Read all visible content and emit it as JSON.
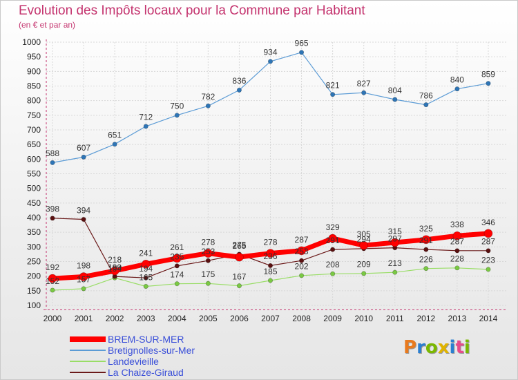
{
  "header": {
    "title": "Evolution des Impôts locaux pour la Commune par Habitant",
    "subtitle": "(en € et par an)"
  },
  "logo": {
    "text": "Proxiti",
    "colors": [
      "#e87a1e",
      "#2a7fd1",
      "#7ab800",
      "#e0b300",
      "#2a7fd1",
      "#e84b8a",
      "#7ab800"
    ]
  },
  "chart_data": {
    "type": "line",
    "title": "Evolution des Impôts locaux pour la Commune par Habitant",
    "subtitle": "(en € et par an)",
    "xlabel": "",
    "ylabel": "",
    "x": [
      "2000",
      "2001",
      "2002",
      "2003",
      "2004",
      "2005",
      "2006",
      "2007",
      "2008",
      "2009",
      "2010",
      "2011",
      "2012",
      "2013",
      "2014"
    ],
    "ylim": [
      100,
      1000
    ],
    "yticks": [
      100,
      150,
      200,
      250,
      300,
      350,
      400,
      450,
      500,
      550,
      600,
      650,
      700,
      750,
      800,
      850,
      900,
      950,
      1000
    ],
    "grid": true,
    "legend_position": "bottom-left",
    "series": [
      {
        "name": "Bretignolles-sur-Mer",
        "color": "#5b9bd5",
        "marker": "#2e75b6",
        "width": 1.2,
        "radius": 3.2,
        "values": [
          588,
          607,
          651,
          712,
          750,
          782,
          836,
          934,
          965,
          821,
          827,
          804,
          786,
          840,
          859
        ]
      },
      {
        "name": "Landevieille",
        "color": "#99dd66",
        "marker": "#7ac943",
        "width": 1.2,
        "radius": 3.2,
        "values": [
          152,
          157,
          194,
          165,
          174,
          175,
          167,
          185,
          202,
          208,
          209,
          213,
          226,
          228,
          223
        ]
      },
      {
        "name": "La Chaize-Giraud",
        "color": "#6b1a1a",
        "marker": "#5a1010",
        "width": 1.2,
        "radius": 3.2,
        "values": [
          398,
          394,
          199,
          194,
          235,
          253,
          275,
          236,
          253,
          291,
          294,
          297,
          291,
          287,
          287
        ]
      },
      {
        "name": "BREM-SUR-MER",
        "color": "#ff0000",
        "marker": "#ff0000",
        "width": 7,
        "radius": 6,
        "values": [
          192,
          198,
          218,
          241,
          261,
          278,
          265,
          278,
          287,
          329,
          305,
          315,
          325,
          338,
          346
        ]
      }
    ],
    "legend": [
      "BREM-SUR-MER",
      "Bretignolles-sur-Mer",
      "Landevieille",
      "La Chaize-Giraud"
    ]
  }
}
